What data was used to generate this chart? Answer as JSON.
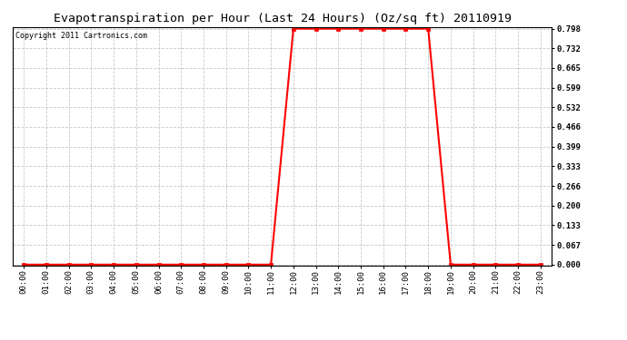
{
  "title": "Evapotranspiration per Hour (Last 24 Hours) (Oz/sq ft) 20110919",
  "copyright_text": "Copyright 2011 Cartronics.com",
  "hours": [
    0,
    1,
    2,
    3,
    4,
    5,
    6,
    7,
    8,
    9,
    10,
    11,
    12,
    13,
    14,
    15,
    16,
    17,
    18,
    19,
    20,
    21,
    22,
    23
  ],
  "values": [
    0.0,
    0.0,
    0.0,
    0.0,
    0.0,
    0.0,
    0.0,
    0.0,
    0.0,
    0.0,
    0.0,
    0.0,
    0.798,
    0.798,
    0.798,
    0.798,
    0.798,
    0.798,
    0.798,
    0.0,
    0.0,
    0.0,
    0.0,
    0.0
  ],
  "line_color": "#ff0000",
  "marker": "s",
  "marker_size": 2.5,
  "background_color": "#ffffff",
  "grid_color": "#c8c8c8",
  "ylim_min": 0.0,
  "ylim_max": 0.798,
  "yticks": [
    0.0,
    0.067,
    0.133,
    0.2,
    0.266,
    0.333,
    0.399,
    0.466,
    0.532,
    0.599,
    0.665,
    0.732,
    0.798
  ],
  "title_fontsize": 9.5,
  "tick_fontsize": 6.5,
  "copyright_fontsize": 6
}
